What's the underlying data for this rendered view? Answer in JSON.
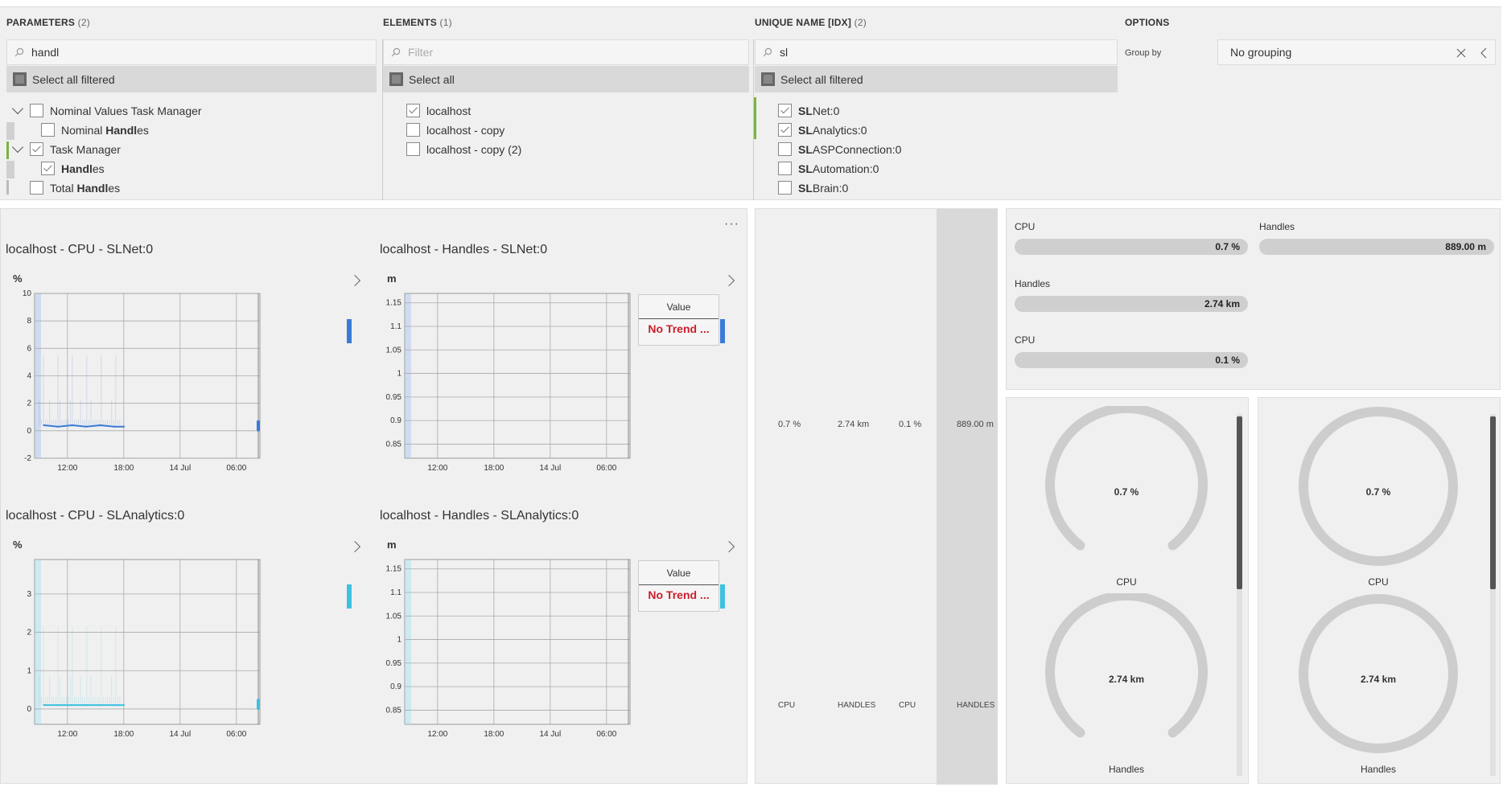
{
  "filters": {
    "parameters": {
      "title": "PARAMETERS",
      "count": "(2)",
      "search_value": "handl",
      "select_all_label": "Select all filtered",
      "items": [
        {
          "pre": "Nominal Values Task Manager",
          "bold": "",
          "post": ""
        },
        {
          "pre": "Nominal ",
          "bold": "Handl",
          "post": "es"
        },
        {
          "pre": "Task Manager",
          "bold": "",
          "post": ""
        },
        {
          "pre": "",
          "bold": "Handl",
          "post": "es"
        },
        {
          "pre": "Total ",
          "bold": "Handl",
          "post": "es"
        }
      ]
    },
    "elements": {
      "title": "ELEMENTS",
      "count": "(1)",
      "search_placeholder": "Filter",
      "select_all_label": "Select all",
      "items": [
        "localhost",
        "localhost - copy",
        "localhost - copy (2)"
      ]
    },
    "unique_name": {
      "title": "UNIQUE NAME [IDX]",
      "count": "(2)",
      "search_value": "sl",
      "select_all_label": "Select all filtered",
      "items": [
        {
          "bold": "SL",
          "post": "Net:0"
        },
        {
          "bold": "SL",
          "post": "Analytics:0"
        },
        {
          "bold": "SL",
          "post": "ASPConnection:0"
        },
        {
          "bold": "SL",
          "post": "Automation:0"
        },
        {
          "bold": "SL",
          "post": "Brain:0"
        }
      ]
    },
    "options": {
      "title": "OPTIONS",
      "group_by_label": "Group by",
      "group_by_value": "No grouping"
    }
  },
  "charts": [
    {
      "title": "localhost - CPU - SLNet:0",
      "unit": "%"
    },
    {
      "title": "localhost - Handles - SLNet:0",
      "unit": "m",
      "value_header": "Value",
      "value_text": "No Trend ..."
    },
    {
      "title": "localhost - CPU - SLAnalytics:0",
      "unit": "%"
    },
    {
      "title": "localhost - Handles - SLAnalytics:0",
      "unit": "m",
      "value_header": "Value",
      "value_text": "No Trend ..."
    }
  ],
  "chart_data": [
    {
      "type": "line",
      "title": "localhost - CPU - SLNet:0",
      "ylabel": "%",
      "ylim": [
        -2,
        10
      ],
      "yticks": [
        "10",
        "8",
        "6",
        "4",
        "2",
        "0",
        "-2"
      ],
      "xticks": [
        "12:00",
        "18:00",
        "14 Jul",
        "06:00"
      ],
      "series": [
        {
          "color": "#3a7bd5",
          "x": [
            "09:30",
            "11:00",
            "12:30",
            "14:00",
            "15:30",
            "17:00",
            "18:00"
          ],
          "values": [
            0.4,
            0.3,
            0.4,
            0.3,
            0.4,
            0.3,
            0.3
          ]
        }
      ]
    },
    {
      "type": "line",
      "title": "localhost - Handles - SLNet:0",
      "ylabel": "m",
      "ylim": [
        0.82,
        1.17
      ],
      "yticks": [
        "1.15",
        "1.1",
        "1.05",
        "1",
        "0.95",
        "0.9",
        "0.85"
      ],
      "xticks": [
        "12:00",
        "18:00",
        "14 Jul",
        "06:00"
      ],
      "series": []
    },
    {
      "type": "line",
      "title": "localhost - CPU - SLAnalytics:0",
      "ylabel": "%",
      "ylim": [
        -0.4,
        3.9
      ],
      "yticks": [
        "3",
        "2",
        "1",
        "0"
      ],
      "xticks": [
        "12:00",
        "18:00",
        "14 Jul",
        "06:00"
      ],
      "series": [
        {
          "color": "#3ec1e0",
          "x": [
            "09:30",
            "11:00",
            "12:30",
            "14:00",
            "15:30",
            "17:00",
            "18:00"
          ],
          "values": [
            0.1,
            0.1,
            0.1,
            0.1,
            0.1,
            0.1,
            0.1
          ]
        }
      ]
    },
    {
      "type": "line",
      "title": "localhost - Handles - SLAnalytics:0",
      "ylabel": "m",
      "ylim": [
        0.82,
        1.17
      ],
      "yticks": [
        "1.15",
        "1.1",
        "1.05",
        "1",
        "0.95",
        "0.9",
        "0.85"
      ],
      "xticks": [
        "12:00",
        "18:00",
        "14 Jul",
        "06:00"
      ],
      "series": []
    }
  ],
  "columns_panel": {
    "values": [
      "0.7 %",
      "2.74 km",
      "0.1 %",
      "889.00 m"
    ],
    "labels": [
      "CPU",
      "HANDLES",
      "CPU",
      "HANDLES"
    ]
  },
  "pills": [
    {
      "label": "CPU",
      "value": "0.7 %",
      "fraction": 1.0
    },
    {
      "label": "Handles",
      "value": "889.00 m",
      "fraction": 1.0
    },
    {
      "label": "Handles",
      "value": "2.74 km",
      "fraction": 1.0
    },
    {
      "label": "CPU",
      "value": "0.1 %",
      "fraction": 1.0
    }
  ],
  "gauges_left": [
    {
      "label": "CPU",
      "value": "0.7 %"
    },
    {
      "label": "Handles",
      "value": "2.74 km"
    }
  ],
  "gauges_right": [
    {
      "label": "CPU",
      "value": "0.7 %"
    },
    {
      "label": "Handles",
      "value": "2.74 km"
    }
  ],
  "colors": {
    "accent_blue": "#3a7bd5",
    "accent_cyan": "#3ec1e0",
    "no_trend_red": "#c8202c",
    "check_green": "#7cb342"
  }
}
